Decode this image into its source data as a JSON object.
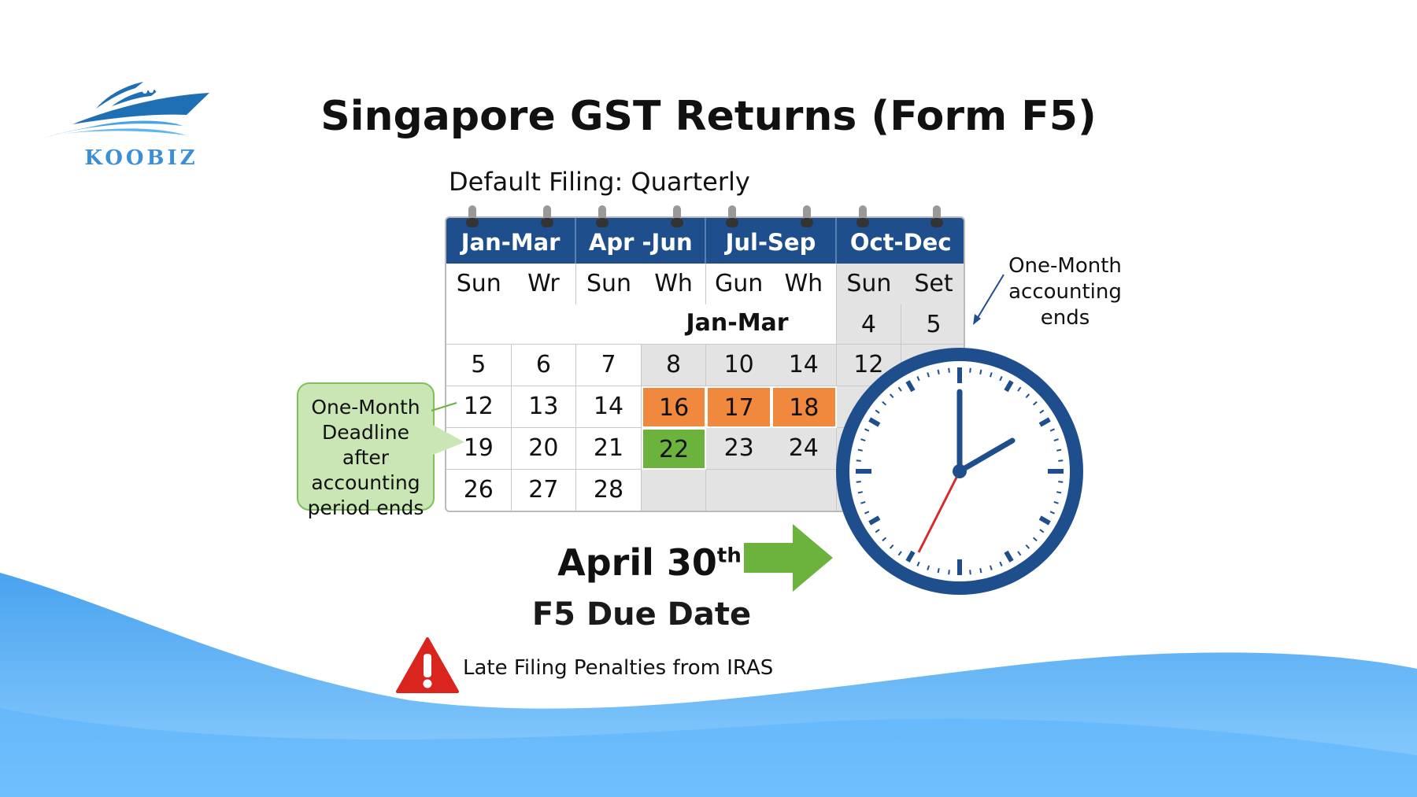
{
  "logo": {
    "text": "KOOBIZ",
    "icon": "boat-wave-logo"
  },
  "title": "Singapore GST Returns (Form F5)",
  "subtitle": "Default Filing: Quarterly",
  "calendar": {
    "quarters": [
      "Jan-Mar",
      "Apr -Jun",
      "Jul-Sep",
      "Oct-Dec"
    ],
    "day_names": [
      "Sun",
      "Wr",
      "Sun",
      "Wh",
      "Gun",
      "Wh",
      "Sun",
      "Set"
    ],
    "month_label": "Jan-Mar",
    "first_row": [
      "4",
      "5"
    ],
    "rows": [
      [
        "5",
        "6",
        "7",
        "8",
        "10",
        "14",
        "12",
        ""
      ],
      [
        "12",
        "13",
        "14",
        "16",
        "17",
        "18",
        "",
        ""
      ],
      [
        "19",
        "20",
        "21",
        "22",
        "23",
        "24",
        "",
        ""
      ],
      [
        "26",
        "27",
        "28",
        "",
        "",
        "",
        "",
        ""
      ]
    ],
    "colors": {
      "header": "#1e4f8c",
      "highlight_orange": "#f0883e",
      "highlight_green": "#6cb33e"
    }
  },
  "callout_left": [
    "One-Month",
    "Deadline after",
    "accounting",
    "period ends"
  ],
  "callout_right": [
    "One-Month",
    "accounting",
    "ends"
  ],
  "due": {
    "date": "April 30",
    "suffix": "th",
    "label": "F5 Due Date"
  },
  "warning": {
    "icon": "warning-triangle-icon",
    "text": "Late Filing Penalties from IRAS"
  }
}
